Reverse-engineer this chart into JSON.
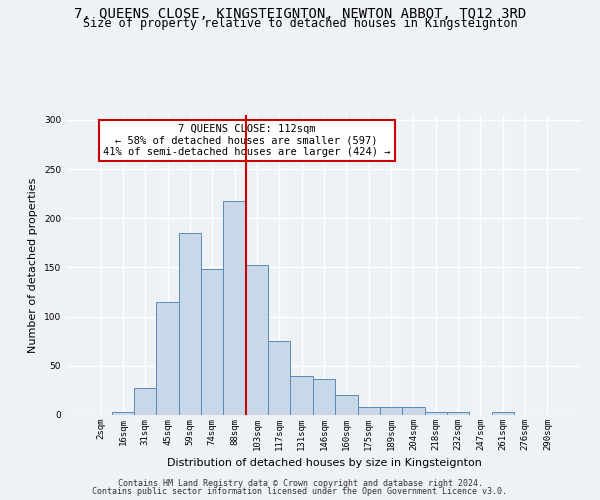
{
  "title": "7, QUEENS CLOSE, KINGSTEIGNTON, NEWTON ABBOT, TQ12 3RD",
  "subtitle": "Size of property relative to detached houses in Kingsteignton",
  "xlabel": "Distribution of detached houses by size in Kingsteignton",
  "ylabel": "Number of detached properties",
  "categories": [
    "2sqm",
    "16sqm",
    "31sqm",
    "45sqm",
    "59sqm",
    "74sqm",
    "88sqm",
    "103sqm",
    "117sqm",
    "131sqm",
    "146sqm",
    "160sqm",
    "175sqm",
    "189sqm",
    "204sqm",
    "218sqm",
    "232sqm",
    "247sqm",
    "261sqm",
    "276sqm",
    "290sqm"
  ],
  "values": [
    0,
    3,
    27,
    115,
    185,
    148,
    218,
    153,
    75,
    40,
    37,
    20,
    8,
    8,
    8,
    3,
    3,
    0,
    3,
    0,
    0
  ],
  "bar_color": "#c8d8e8",
  "bar_edge_color": "#5b8ab5",
  "vline_color": "#cc0000",
  "annotation_text": "7 QUEENS CLOSE: 112sqm\n← 58% of detached houses are smaller (597)\n41% of semi-detached houses are larger (424) →",
  "annotation_box_color": "#ffffff",
  "annotation_box_edge_color": "#cc0000",
  "ylim": [
    0,
    305
  ],
  "yticks": [
    0,
    50,
    100,
    150,
    200,
    250,
    300
  ],
  "footer1": "Contains HM Land Registry data © Crown copyright and database right 2024.",
  "footer2": "Contains public sector information licensed under the Open Government Licence v3.0.",
  "background_color": "#eef2f7",
  "grid_color": "#ffffff",
  "title_fontsize": 10,
  "subtitle_fontsize": 8.5,
  "xlabel_fontsize": 8,
  "ylabel_fontsize": 8,
  "tick_fontsize": 6.5,
  "footer_fontsize": 6,
  "annot_fontsize": 7.5,
  "vline_pos": 7.0
}
